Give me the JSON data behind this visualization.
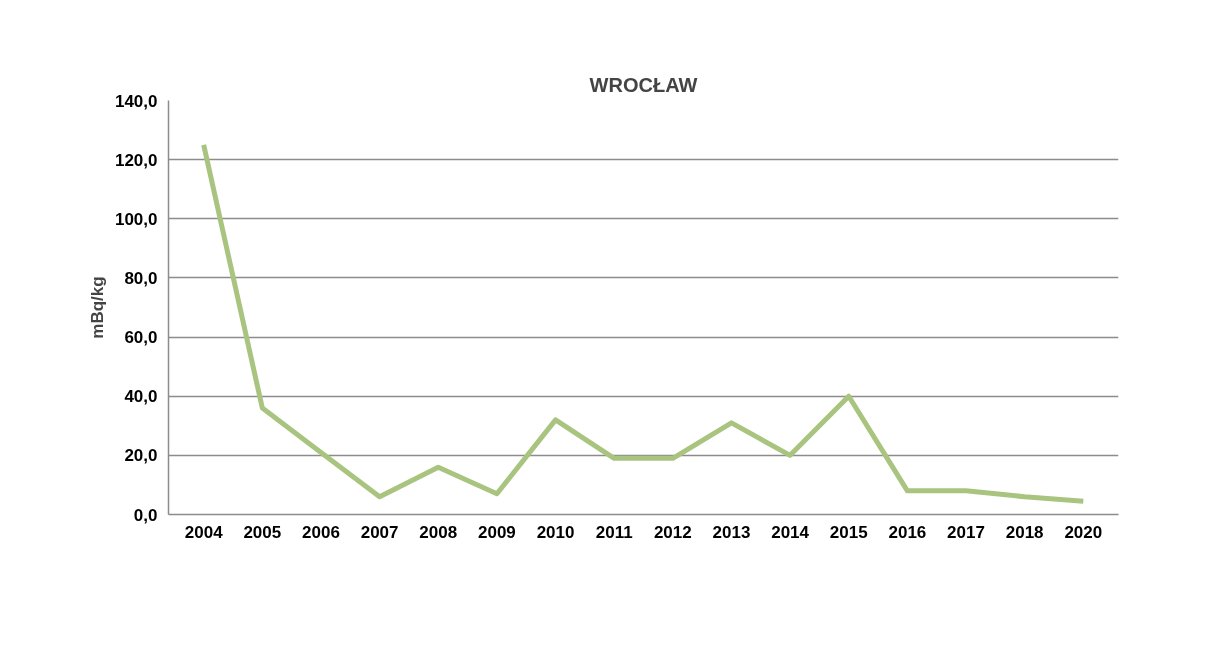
{
  "chart_data": {
    "type": "line",
    "title": "WROCŁAW",
    "ylabel": "mBq/kg",
    "categories": [
      "2004",
      "2005",
      "2006",
      "2007",
      "2008",
      "2009",
      "2010",
      "2011",
      "2012",
      "2013",
      "2014",
      "2015",
      "2016",
      "2017",
      "2018",
      "2020"
    ],
    "series": [
      {
        "color": "#a9c47f",
        "values": [
          125,
          36,
          21,
          6,
          16,
          7,
          32,
          19,
          19,
          31,
          20,
          40,
          8,
          8,
          6,
          4.5
        ]
      }
    ],
    "ylim": [
      0,
      140
    ],
    "yticks": [
      {
        "value": 0,
        "label": "0,0"
      },
      {
        "value": 20,
        "label": "20,0"
      },
      {
        "value": 40,
        "label": "40,0"
      },
      {
        "value": 60,
        "label": "60,0"
      },
      {
        "value": 80,
        "label": "80,0"
      },
      {
        "value": 100,
        "label": "100,0"
      },
      {
        "value": 120,
        "label": "120,0"
      },
      {
        "value": 140,
        "label": "140,0"
      }
    ],
    "grid": "y",
    "line_style": "solid"
  }
}
